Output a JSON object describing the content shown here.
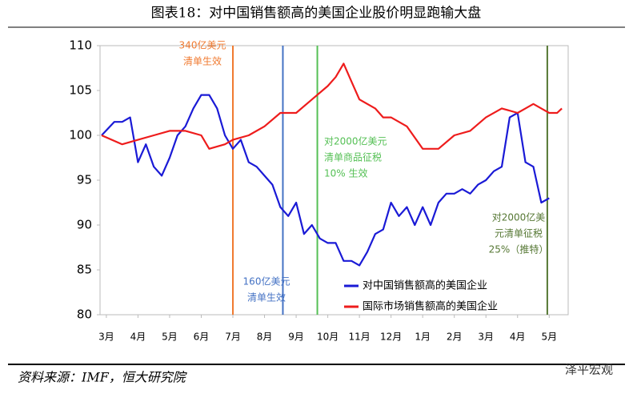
{
  "chart_data": {
    "type": "line",
    "title": "图表18：对中国销售额高的美国企业股价明显跑输大盘",
    "source": "资料来源：IMF，恒大研究院",
    "watermark": "泽平宏观",
    "xlim": [
      -0.2,
      14.6
    ],
    "xticks": [
      {
        "value": 0,
        "label": "3月"
      },
      {
        "value": 1,
        "label": "4月"
      },
      {
        "value": 2,
        "label": "5月"
      },
      {
        "value": 3,
        "label": "6月"
      },
      {
        "value": 4,
        "label": "7月"
      },
      {
        "value": 5,
        "label": "8月"
      },
      {
        "value": 6,
        "label": "9月"
      },
      {
        "value": 7,
        "label": "10月"
      },
      {
        "value": 8,
        "label": "11月"
      },
      {
        "value": 9,
        "label": "12月"
      },
      {
        "value": 10,
        "label": "1月"
      },
      {
        "value": 11,
        "label": "2月"
      },
      {
        "value": 12,
        "label": "3月"
      },
      {
        "value": 13,
        "label": "4月"
      },
      {
        "value": 14,
        "label": "5月"
      }
    ],
    "ylim": [
      80,
      110
    ],
    "yticks": [
      80,
      85,
      90,
      95,
      100,
      105,
      110
    ],
    "series": [
      {
        "name": "对中国销售额高的美国企业",
        "color": "#1a1ad6",
        "x": [
          -0.15,
          0.25,
          0.5,
          0.75,
          1.0,
          1.25,
          1.5,
          1.75,
          2.0,
          2.25,
          2.5,
          2.75,
          3.0,
          3.25,
          3.5,
          3.75,
          4.0,
          4.25,
          4.5,
          4.75,
          5.0,
          5.25,
          5.5,
          5.75,
          6.0,
          6.25,
          6.5,
          6.75,
          7.0,
          7.25,
          7.5,
          7.75,
          8.0,
          8.25,
          8.5,
          8.75,
          9.0,
          9.25,
          9.5,
          9.75,
          10.0,
          10.25,
          10.5,
          10.75,
          11.0,
          11.25,
          11.5,
          11.75,
          12.0,
          12.25,
          12.5,
          12.75,
          13.0,
          13.25,
          13.5,
          13.75,
          14.0
        ],
        "values": [
          100,
          101.5,
          101.5,
          102,
          97,
          99,
          96.5,
          95.5,
          97.5,
          100,
          101,
          103,
          104.5,
          104.5,
          103,
          100,
          98.5,
          99.5,
          97,
          96.5,
          95.5,
          94.5,
          92,
          91,
          92.5,
          89,
          90,
          88.5,
          88,
          88,
          86,
          86,
          85.5,
          87,
          89,
          89.5,
          92.5,
          91,
          92,
          90,
          92,
          90,
          92.5,
          93.5,
          93.5,
          94,
          93.5,
          94.5,
          95,
          96,
          96.5,
          102,
          102.5,
          97,
          96.5,
          92.5,
          93
        ]
      },
      {
        "name": "国际市场销售额高的美国企业",
        "color": "#ee1c1c",
        "x": [
          -0.15,
          0.5,
          1.0,
          1.5,
          2.0,
          2.5,
          3.0,
          3.25,
          3.75,
          4.0,
          4.5,
          5.0,
          5.5,
          6.0,
          6.5,
          7.0,
          7.25,
          7.5,
          7.75,
          8.0,
          8.5,
          8.75,
          9.0,
          9.5,
          10.0,
          10.5,
          11.0,
          11.5,
          12.0,
          12.5,
          13.0,
          13.25,
          13.5,
          13.75,
          14.0,
          14.25,
          14.4
        ],
        "values": [
          100,
          99,
          99.5,
          100,
          100.5,
          100.5,
          100,
          98.5,
          99,
          99.5,
          100,
          101,
          102.5,
          102.5,
          104,
          105.5,
          106.5,
          108,
          106,
          104,
          103,
          102,
          102,
          101,
          98.5,
          98.5,
          100,
          100.5,
          102,
          103,
          102.5,
          103,
          103.5,
          103,
          102.5,
          102.5,
          103
        ]
      }
    ],
    "annotations": [
      {
        "x": 4.0,
        "color": "#f07a30",
        "lines": [
          "340亿美元",
          "清单生效"
        ]
      },
      {
        "x": 5.58,
        "color": "#4472c4",
        "lines": [
          "160亿美元",
          "清单生效"
        ]
      },
      {
        "x": 6.67,
        "color": "#55c055",
        "lines": [
          "对2000亿美元",
          "清单商品征税",
          "10% 生效"
        ]
      },
      {
        "x": 13.94,
        "color": "#557733",
        "lines": [
          "对2000亿美",
          "元清单征税",
          "25%（推特）"
        ]
      }
    ]
  }
}
